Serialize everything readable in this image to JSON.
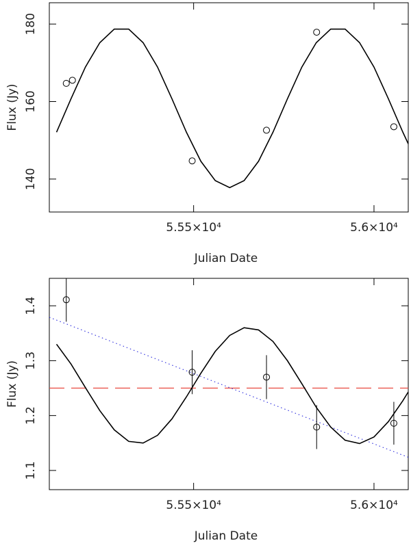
{
  "chart_data": [
    {
      "type": "line",
      "xlabel": "Julian Date",
      "ylabel": "Flux (Jy)",
      "xlim": [
        55100,
        56095
      ],
      "ylim": [
        131.5,
        185.5
      ],
      "xticks": [
        {
          "value": 55500,
          "label": "5.55×10⁴"
        },
        {
          "value": 56000,
          "label": "5.6×10⁴"
        }
      ],
      "yticks": [
        140,
        160,
        180
      ],
      "series": [
        {
          "style": "solid",
          "color": "#000000",
          "x": [
            55120,
            55160,
            55200,
            55240,
            55280,
            55320,
            55360,
            55400,
            55440,
            55480,
            55520,
            55560,
            55600,
            55640,
            55680,
            55720,
            55760,
            55800,
            55840,
            55880,
            55920,
            55960,
            56000,
            56040,
            56080,
            56095
          ],
          "values": [
            152.1,
            160.7,
            168.9,
            175.2,
            178.7,
            178.7,
            175.2,
            168.9,
            160.7,
            152.1,
            144.6,
            139.6,
            137.8,
            139.6,
            144.6,
            152.1,
            160.7,
            168.9,
            175.2,
            178.7,
            178.7,
            175.2,
            168.9,
            160.7,
            152.1,
            149.1
          ]
        },
        {
          "style": "markers",
          "color": "#000000",
          "x": [
            55147,
            55164,
            55496,
            55702,
            55841,
            56055
          ],
          "values": [
            164.7,
            165.5,
            144.7,
            152.6,
            177.9,
            153.5
          ]
        }
      ]
    },
    {
      "type": "line",
      "xlabel": "Julian Date",
      "ylabel": "Flux (Jy)",
      "xlim": [
        55100,
        56095
      ],
      "ylim": [
        1.065,
        1.45
      ],
      "xticks": [
        {
          "value": 55500,
          "label": "5.55×10⁴"
        },
        {
          "value": 56000,
          "label": "5.6×10⁴"
        }
      ],
      "yticks": [
        1.1,
        1.2,
        1.3,
        1.4
      ],
      "series": [
        {
          "style": "dashed",
          "color": "#e8483f",
          "x": [
            55100,
            56095
          ],
          "values": [
            1.25,
            1.25
          ]
        },
        {
          "style": "dotted",
          "color": "#3a3adf",
          "x": [
            55100,
            56095
          ],
          "values": [
            1.379,
            1.124
          ]
        },
        {
          "style": "solid",
          "color": "#000000",
          "x": [
            55120,
            55160,
            55200,
            55240,
            55280,
            55320,
            55360,
            55400,
            55440,
            55480,
            55520,
            55560,
            55600,
            55640,
            55680,
            55720,
            55760,
            55800,
            55840,
            55880,
            55920,
            55960,
            56000,
            56040,
            56080,
            56095
          ],
          "values": [
            1.33,
            1.294,
            1.251,
            1.209,
            1.174,
            1.153,
            1.15,
            1.164,
            1.194,
            1.234,
            1.277,
            1.317,
            1.346,
            1.36,
            1.356,
            1.335,
            1.3,
            1.258,
            1.215,
            1.179,
            1.155,
            1.149,
            1.161,
            1.189,
            1.227,
            1.243
          ]
        },
        {
          "style": "markers",
          "color": "#000000",
          "x": [
            55147,
            55496,
            55702,
            55841,
            56055
          ],
          "values": [
            1.411,
            1.279,
            1.27,
            1.179,
            1.186
          ],
          "errors": [
            0.04,
            0.04,
            0.04,
            0.04,
            0.039
          ]
        }
      ]
    }
  ]
}
